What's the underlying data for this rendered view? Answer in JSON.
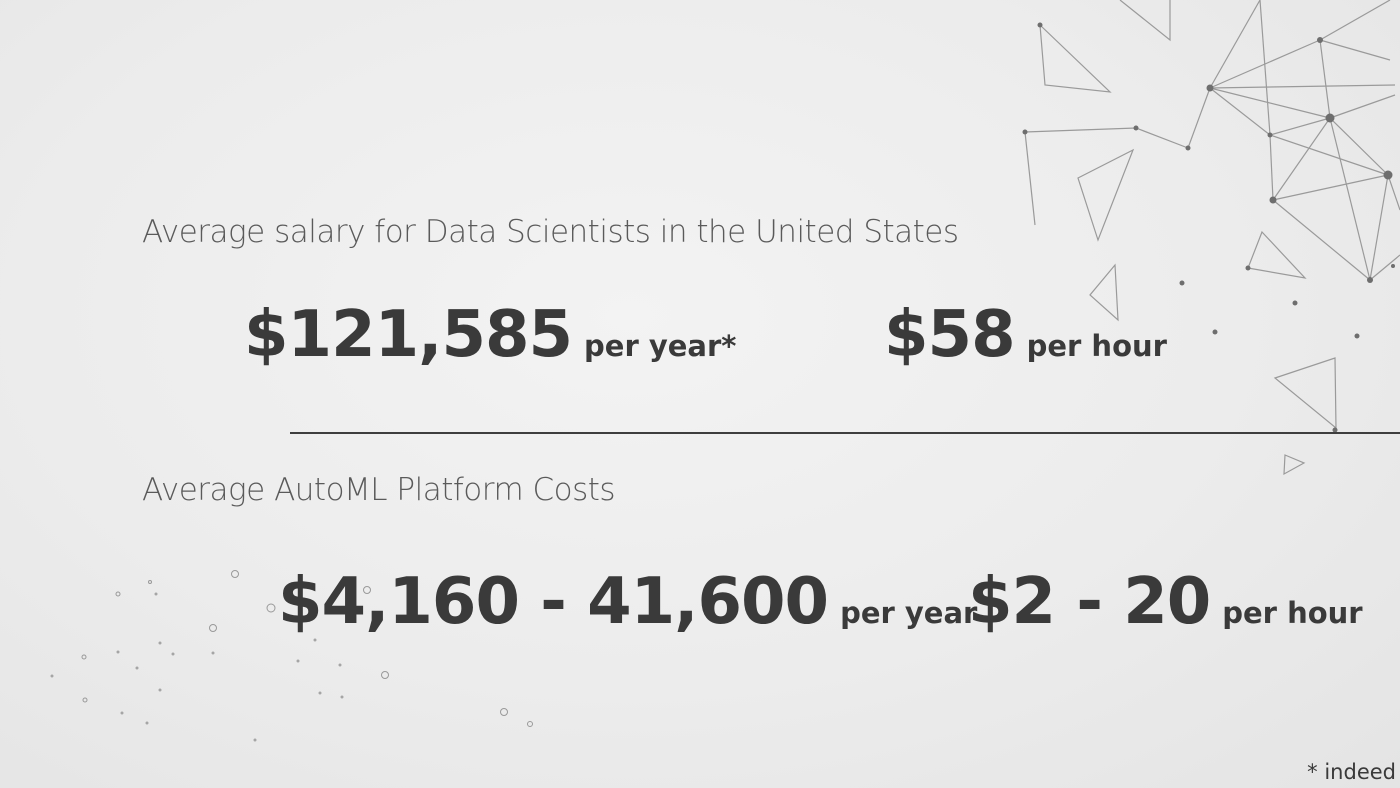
{
  "slide": {
    "salary_heading": "Average salary for Data Scientists in the United States",
    "salary_per_year": {
      "amount": "$121,585",
      "unit": "per year*"
    },
    "salary_per_hour": {
      "amount": "$58",
      "unit": "per hour"
    },
    "automl_heading": "Average AutoML Platform Costs",
    "automl_per_year": {
      "amount": "$4,160 - 41,600",
      "unit": "per year"
    },
    "automl_per_hour": {
      "amount": "$2 - 20",
      "unit": "per hour"
    },
    "footnote": "* indeed"
  },
  "colors": {
    "background": "#ececec",
    "text_dark": "#3a3a3a",
    "text_heading": "#5a5a5a",
    "decoration": "#8a8a8a"
  }
}
